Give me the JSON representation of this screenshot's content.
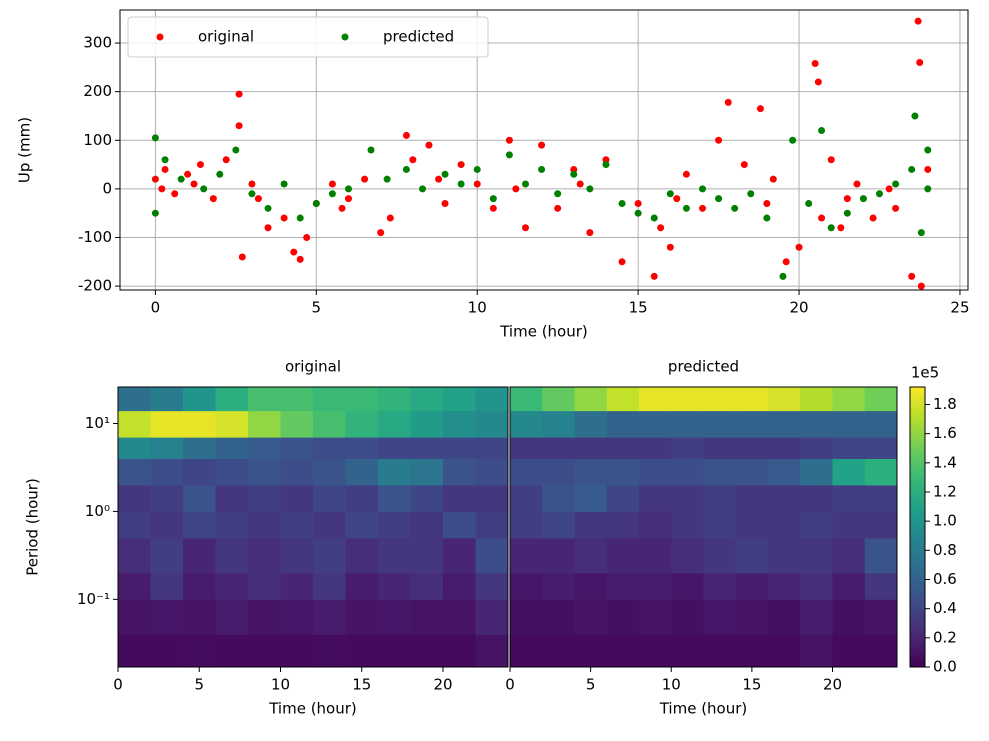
{
  "chart_data": [
    {
      "type": "scatter",
      "xlabel": "Time (hour)",
      "ylabel": "Up (mm)",
      "xlim": [
        -1.1,
        25.25
      ],
      "ylim": [
        -208,
        368
      ],
      "xticks": [
        0,
        5,
        10,
        15,
        20,
        25
      ],
      "yticks": [
        -200,
        -100,
        0,
        100,
        200,
        300
      ],
      "grid": true,
      "legend": "upper left",
      "legend_ncol": 2,
      "series": [
        {
          "name": "original",
          "color": "#ff0000",
          "x": [
            0,
            0.3,
            0.6,
            1,
            1.4,
            1.8,
            2.2,
            2.6,
            2.6,
            2.7,
            3,
            3.5,
            4,
            4.3,
            4.5,
            4.7,
            5,
            5.5,
            6,
            6.5,
            7,
            7.3,
            7.8,
            8,
            8.5,
            9,
            9.5,
            10,
            10.5,
            11,
            11.5,
            12,
            12.5,
            13,
            13.5,
            14,
            14.5,
            15,
            15.5,
            15.7,
            16,
            16.5,
            17,
            17.5,
            17.8,
            18.3,
            18.8,
            19.2,
            19.6,
            20,
            20.5,
            20.6,
            20.7,
            21,
            21.3,
            21.8,
            22.3,
            23,
            23.5,
            23.7,
            23.75,
            23.8,
            24,
            0.2,
            1.2,
            3.2,
            5.8,
            8.8,
            11.2,
            13.2,
            16.2,
            19,
            21.5,
            22.8
          ],
          "values": [
            20,
            40,
            -10,
            30,
            50,
            -20,
            60,
            195,
            130,
            -140,
            10,
            -80,
            -60,
            -130,
            -145,
            -100,
            -30,
            10,
            -20,
            20,
            -90,
            -60,
            110,
            60,
            90,
            -30,
            50,
            10,
            -40,
            100,
            -80,
            90,
            -40,
            40,
            -90,
            60,
            -150,
            -30,
            -180,
            -80,
            -120,
            30,
            -40,
            100,
            178,
            50,
            165,
            20,
            -150,
            -120,
            258,
            220,
            -60,
            60,
            -80,
            10,
            -60,
            -40,
            -180,
            345,
            260,
            -200,
            40,
            0,
            10,
            -20,
            -40,
            20,
            0,
            10,
            -20,
            -30,
            -20,
            0
          ]
        },
        {
          "name": "predicted",
          "color": "#008000",
          "x": [
            0,
            0,
            0.3,
            0.8,
            1.5,
            2,
            2.5,
            3,
            3.5,
            4,
            4.5,
            5,
            5.5,
            6,
            6.7,
            7.2,
            7.8,
            8.3,
            9,
            9.5,
            10,
            10.5,
            11,
            11.5,
            12,
            12.5,
            13,
            13.5,
            14,
            14.5,
            15,
            15.5,
            16,
            16.5,
            17,
            17.5,
            18,
            18.5,
            19,
            19.5,
            19.8,
            20.3,
            20.7,
            21,
            21.5,
            22,
            22.5,
            23,
            23.5,
            23.6,
            23.8,
            24,
            24
          ],
          "values": [
            105,
            -50,
            60,
            20,
            0,
            30,
            80,
            -10,
            -40,
            10,
            -60,
            -30,
            -10,
            0,
            80,
            20,
            40,
            0,
            30,
            10,
            40,
            -20,
            70,
            10,
            40,
            -10,
            30,
            0,
            50,
            -30,
            -50,
            -60,
            -10,
            -40,
            0,
            -20,
            -40,
            -10,
            -60,
            -180,
            100,
            -30,
            120,
            -80,
            -50,
            -20,
            -10,
            10,
            40,
            150,
            -90,
            80,
            0
          ]
        }
      ]
    },
    {
      "type": "heatmap",
      "title": "original",
      "xlabel": "Time (hour)",
      "ylabel": "Period (hour)",
      "colormap": "viridis",
      "xlim": [
        0,
        24
      ],
      "ylim": [
        0.017,
        26
      ],
      "yscale": "log",
      "xticks": [
        0,
        5,
        10,
        15,
        20
      ],
      "yticks": [
        {
          "value": 10,
          "label": "10¹"
        },
        {
          "value": 1,
          "label": "10⁰"
        },
        {
          "value": 0.1,
          "label": "10⁻¹"
        }
      ],
      "zlim": [
        0,
        1.92
      ],
      "x_edges": [
        0,
        2,
        4,
        6,
        8,
        10,
        12,
        14,
        16,
        18,
        20,
        22,
        24
      ],
      "y_edges": [
        0.017,
        0.04,
        0.1,
        0.2,
        0.5,
        1,
        2,
        4,
        7,
        14,
        26
      ],
      "z": [
        [
          0.05,
          0.05,
          0.06,
          0.05,
          0.05,
          0.05,
          0.06,
          0.05,
          0.05,
          0.05,
          0.05,
          0.1
        ],
        [
          0.1,
          0.12,
          0.1,
          0.15,
          0.1,
          0.12,
          0.15,
          0.1,
          0.12,
          0.1,
          0.1,
          0.2
        ],
        [
          0.15,
          0.3,
          0.15,
          0.2,
          0.25,
          0.2,
          0.3,
          0.15,
          0.2,
          0.25,
          0.15,
          0.3
        ],
        [
          0.25,
          0.35,
          0.2,
          0.3,
          0.25,
          0.3,
          0.35,
          0.25,
          0.3,
          0.3,
          0.2,
          0.45
        ],
        [
          0.35,
          0.3,
          0.4,
          0.35,
          0.3,
          0.35,
          0.3,
          0.4,
          0.35,
          0.3,
          0.45,
          0.35
        ],
        [
          0.3,
          0.35,
          0.5,
          0.3,
          0.35,
          0.3,
          0.4,
          0.35,
          0.5,
          0.4,
          0.3,
          0.3
        ],
        [
          0.5,
          0.45,
          0.4,
          0.45,
          0.5,
          0.45,
          0.5,
          0.6,
          0.8,
          0.75,
          0.5,
          0.45
        ],
        [
          0.9,
          0.85,
          0.7,
          0.6,
          0.55,
          0.5,
          0.45,
          0.45,
          0.4,
          0.4,
          0.4,
          0.4
        ],
        [
          1.75,
          1.85,
          1.85,
          1.8,
          1.6,
          1.45,
          1.35,
          1.25,
          1.15,
          1.05,
          0.95,
          0.9
        ],
        [
          0.7,
          0.8,
          1.0,
          1.2,
          1.35,
          1.35,
          1.3,
          1.3,
          1.25,
          1.15,
          1.1,
          1.0
        ]
      ]
    },
    {
      "type": "heatmap",
      "title": "predicted",
      "xlabel": "Time (hour)",
      "colormap": "viridis",
      "xlim": [
        0,
        24
      ],
      "ylim": [
        0.017,
        26
      ],
      "yscale": "log",
      "xticks": [
        0,
        5,
        10,
        15,
        20
      ],
      "zlim": [
        0,
        1.92
      ],
      "x_edges": [
        0,
        2,
        4,
        6,
        8,
        10,
        12,
        14,
        16,
        18,
        20,
        22,
        24
      ],
      "y_edges": [
        0.017,
        0.04,
        0.1,
        0.2,
        0.5,
        1,
        2,
        4,
        7,
        14,
        26
      ],
      "z": [
        [
          0.05,
          0.05,
          0.05,
          0.05,
          0.05,
          0.05,
          0.05,
          0.05,
          0.05,
          0.1,
          0.05,
          0.05
        ],
        [
          0.08,
          0.08,
          0.1,
          0.08,
          0.1,
          0.08,
          0.12,
          0.1,
          0.08,
          0.15,
          0.08,
          0.1
        ],
        [
          0.12,
          0.15,
          0.12,
          0.15,
          0.15,
          0.12,
          0.2,
          0.15,
          0.2,
          0.25,
          0.15,
          0.3
        ],
        [
          0.2,
          0.2,
          0.25,
          0.2,
          0.2,
          0.25,
          0.3,
          0.35,
          0.3,
          0.3,
          0.25,
          0.5
        ],
        [
          0.35,
          0.4,
          0.3,
          0.3,
          0.25,
          0.3,
          0.35,
          0.3,
          0.3,
          0.35,
          0.3,
          0.3
        ],
        [
          0.35,
          0.5,
          0.55,
          0.4,
          0.3,
          0.3,
          0.35,
          0.3,
          0.3,
          0.3,
          0.35,
          0.35
        ],
        [
          0.45,
          0.45,
          0.5,
          0.5,
          0.45,
          0.45,
          0.5,
          0.5,
          0.55,
          0.7,
          1.1,
          1.2
        ],
        [
          0.3,
          0.3,
          0.3,
          0.3,
          0.3,
          0.35,
          0.3,
          0.3,
          0.3,
          0.35,
          0.4,
          0.4
        ],
        [
          0.9,
          0.85,
          0.7,
          0.6,
          0.6,
          0.6,
          0.6,
          0.6,
          0.6,
          0.6,
          0.6,
          0.6
        ],
        [
          1.3,
          1.45,
          1.6,
          1.75,
          1.85,
          1.85,
          1.85,
          1.85,
          1.8,
          1.7,
          1.6,
          1.5
        ]
      ],
      "colorbar": {
        "scale_label": "1e5",
        "ylim": [
          0,
          1.92
        ],
        "yticks": [
          {
            "value": 0,
            "label": "0.0"
          },
          0.2,
          0.4,
          0.6,
          0.8,
          {
            "value": 1,
            "label": "1.0"
          },
          1.2,
          1.4,
          1.6,
          1.8
        ]
      }
    }
  ]
}
